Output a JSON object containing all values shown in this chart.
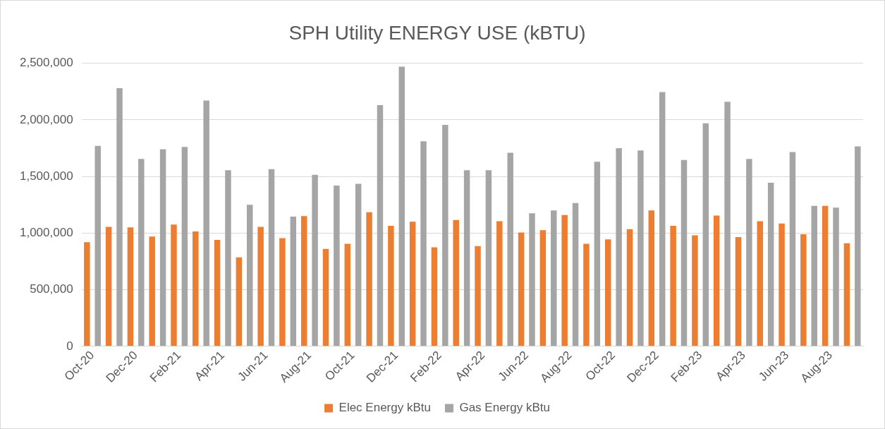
{
  "chart_data": {
    "type": "bar",
    "title": "SPH Utility ENERGY USE (kBTU)",
    "categories": [
      "Oct-20",
      null,
      "Dec-20",
      null,
      "Feb-21",
      null,
      "Apr-21",
      null,
      "Jun-21",
      null,
      "Aug-21",
      null,
      "Oct-21",
      null,
      "Dec-21",
      null,
      "Feb-22",
      null,
      "Apr-22",
      null,
      "Jun-22",
      null,
      "Aug-22",
      null,
      "Oct-22",
      null,
      "Dec-22",
      null,
      "Feb-23",
      null,
      "Apr-23",
      null,
      "Jun-23",
      null,
      "Aug-23",
      null
    ],
    "series": [
      {
        "name": "Elec Energy kBtu",
        "color": "#ed7d31",
        "values": [
          920000,
          1055000,
          1050000,
          970000,
          1075000,
          1015000,
          940000,
          785000,
          1055000,
          955000,
          1150000,
          860000,
          905000,
          1185000,
          1065000,
          1100000,
          875000,
          1115000,
          885000,
          1105000,
          1005000,
          1025000,
          1160000,
          905000,
          945000,
          1035000,
          1200000,
          1065000,
          980000,
          1155000,
          965000,
          1105000,
          1085000,
          990000,
          1240000,
          910000
        ]
      },
      {
        "name": "Gas Energy kBtu",
        "color": "#a5a5a5",
        "values": [
          1770000,
          2280000,
          1655000,
          1740000,
          1760000,
          2170000,
          1555000,
          1250000,
          1565000,
          1145000,
          1515000,
          1420000,
          1435000,
          2130000,
          2470000,
          1810000,
          1955000,
          1555000,
          1555000,
          1710000,
          1175000,
          1200000,
          1265000,
          1630000,
          1750000,
          1730000,
          2245000,
          1645000,
          1970000,
          2160000,
          1655000,
          1445000,
          1715000,
          1240000,
          1225000,
          1765000
        ]
      }
    ],
    "ylim": [
      0,
      2500000
    ],
    "yticks": [
      {
        "value": 0,
        "label": "0"
      },
      {
        "value": 500000,
        "label": "500,000"
      },
      {
        "value": 1000000,
        "label": "1,000,000"
      },
      {
        "value": 1500000,
        "label": "1,500,000"
      },
      {
        "value": 2000000,
        "label": "2,000,000"
      },
      {
        "value": 2500000,
        "label": "2,500,000"
      }
    ],
    "grid": "y",
    "legend": "bottom"
  }
}
